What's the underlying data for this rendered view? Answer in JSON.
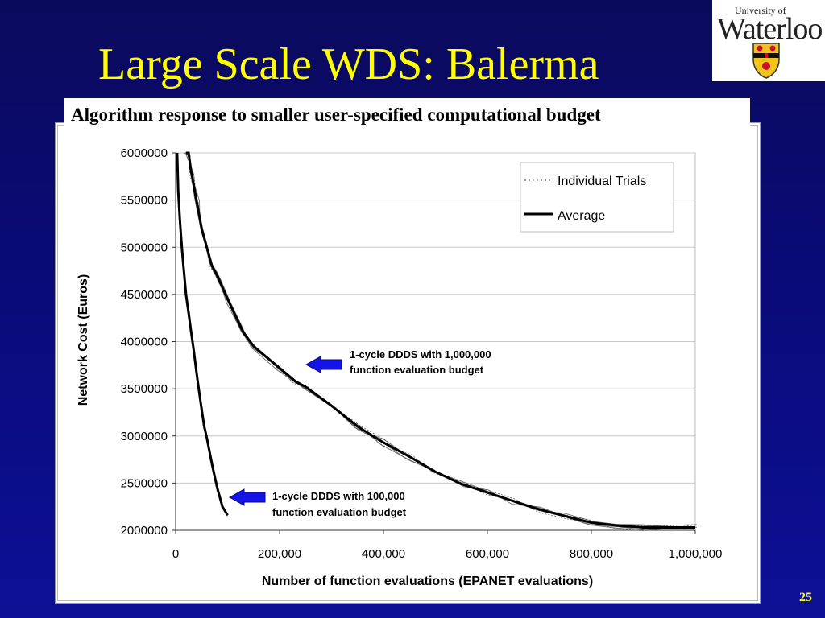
{
  "slide": {
    "title": "Large Scale WDS: Balerma",
    "caption": "Algorithm response to smaller user-specified computational budget",
    "page_number": "25"
  },
  "logo": {
    "line1": "University of",
    "line2": "Waterloo"
  },
  "colors": {
    "title": "#ffff00",
    "background": "#0a0a78",
    "arrow": "#1414e6"
  },
  "chart_data": {
    "type": "line",
    "xlabel": "Number of function evaluations (EPANET evaluations)",
    "ylabel": "Network Cost (Euros)",
    "xlim": [
      0,
      1000000
    ],
    "ylim": [
      2000000,
      6000000
    ],
    "x_ticks": [
      "0",
      "200,000",
      "400,000",
      "600,000",
      "800,000",
      "1,000,000"
    ],
    "x_tick_values": [
      0,
      200000,
      400000,
      600000,
      800000,
      1000000
    ],
    "y_ticks": [
      "2000000",
      "2500000",
      "3000000",
      "3500000",
      "4000000",
      "4500000",
      "5000000",
      "5500000",
      "6000000"
    ],
    "y_tick_values": [
      2000000,
      2500000,
      3000000,
      3500000,
      4000000,
      4500000,
      5000000,
      5500000,
      6000000
    ],
    "grid": "horizontal",
    "legend": {
      "position": "top-right",
      "entries": [
        {
          "label": "Individual Trials",
          "style": "dotted"
        },
        {
          "label": "Average",
          "style": "solid"
        }
      ]
    },
    "series": [
      {
        "name": "Average",
        "group": "1M budget",
        "x": [
          20000,
          25000,
          30000,
          40000,
          50000,
          70000,
          80000,
          100000,
          130000,
          150000,
          200000,
          230000,
          250000,
          300000,
          350000,
          400000,
          450000,
          500000,
          550000,
          600000,
          650000,
          700000,
          750000,
          800000,
          850000,
          900000,
          1000000
        ],
        "y": [
          6000000,
          6000000,
          5800000,
          5500000,
          5200000,
          4800000,
          4700000,
          4450000,
          4100000,
          3950000,
          3720000,
          3580000,
          3520000,
          3320000,
          3100000,
          2930000,
          2780000,
          2620000,
          2490000,
          2400000,
          2310000,
          2220000,
          2150000,
          2080000,
          2050000,
          2030000,
          2030000
        ]
      },
      {
        "name": "Average",
        "group": "100K budget",
        "x": [
          3000,
          5000,
          8000,
          12000,
          15000,
          20000,
          25000,
          30000,
          35000,
          40000,
          45000,
          50000,
          55000,
          60000,
          70000,
          80000,
          90000,
          100000
        ],
        "y": [
          6000000,
          5600000,
          5300000,
          5000000,
          4800000,
          4500000,
          4300000,
          4100000,
          3900000,
          3680000,
          3480000,
          3280000,
          3100000,
          2980000,
          2700000,
          2450000,
          2250000,
          2160000
        ]
      }
    ],
    "annotations": [
      {
        "text_line1": "1-cycle DDDS with 1,000,000",
        "text_line2": "function evaluation budget",
        "points_to": "1M budget curve"
      },
      {
        "text_line1": "1-cycle DDDS with 100,000",
        "text_line2": "function evaluation budget",
        "points_to": "100K budget curve"
      }
    ]
  }
}
